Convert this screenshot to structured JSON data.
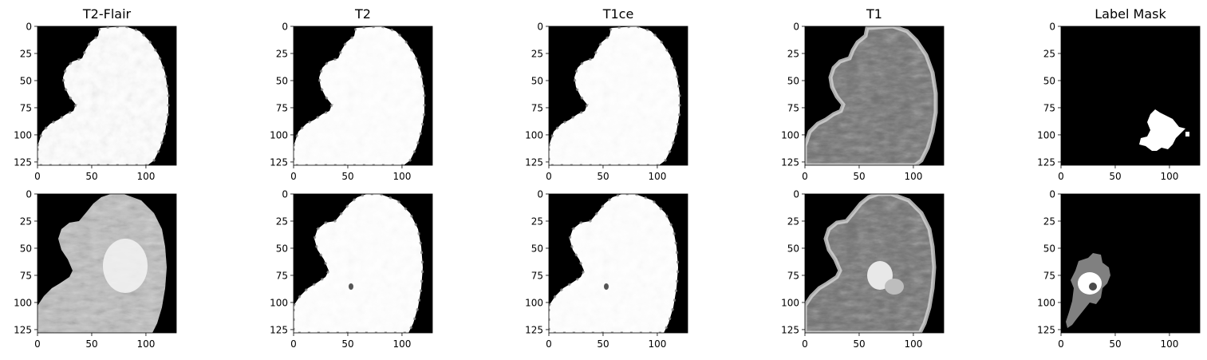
{
  "figure": {
    "columns": [
      "T2-Flair",
      "T2",
      "T1ce",
      "T1",
      "Label Mask"
    ],
    "rows": 2,
    "axis": {
      "xticks": [
        "0",
        "50",
        "100"
      ],
      "yticks": [
        "0",
        "25",
        "50",
        "75",
        "100",
        "125"
      ],
      "xtick_values": [
        0,
        50,
        100
      ],
      "ytick_values": [
        0,
        25,
        50,
        75,
        100,
        125
      ],
      "range": [
        0,
        128
      ]
    },
    "colors": {
      "background": "#000000",
      "tissue_bright": "#ffffff",
      "tissue_gray": "#8a8a8a",
      "mask_gray": "#808080",
      "text": "#000000"
    }
  }
}
